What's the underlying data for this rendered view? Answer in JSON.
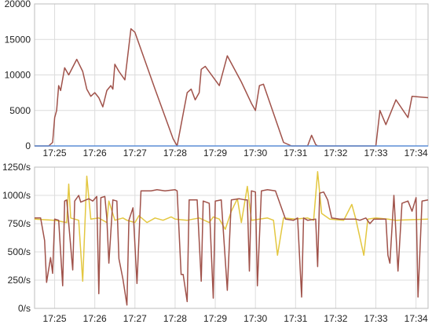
{
  "chart_data": [
    {
      "type": "line",
      "title": "",
      "xlabel": "",
      "ylabel": "",
      "x_ticks": [
        "17:25",
        "17:26",
        "17:27",
        "17:28",
        "17:29",
        "17:30",
        "17:31",
        "17:32",
        "17:33",
        "17:34"
      ],
      "y_ticks": [
        "0",
        "5000",
        "10000",
        "15000",
        "20000"
      ],
      "ylim": [
        0,
        20000
      ],
      "xlim_minutes": [
        24.5,
        34.3
      ],
      "grid": true,
      "series": [
        {
          "color": "#a0524a",
          "points": [
            [
              24.5,
              0
            ],
            [
              24.85,
              0
            ],
            [
              24.95,
              500
            ],
            [
              25.0,
              4000
            ],
            [
              25.05,
              5000
            ],
            [
              25.1,
              8500
            ],
            [
              25.15,
              7800
            ],
            [
              25.25,
              11000
            ],
            [
              25.35,
              10000
            ],
            [
              25.55,
              12200
            ],
            [
              25.7,
              10500
            ],
            [
              25.8,
              8000
            ],
            [
              25.9,
              7000
            ],
            [
              26.0,
              7500
            ],
            [
              26.1,
              6800
            ],
            [
              26.2,
              5500
            ],
            [
              26.3,
              7800
            ],
            [
              26.4,
              8500
            ],
            [
              26.45,
              8000
            ],
            [
              26.5,
              11500
            ],
            [
              26.6,
              10500
            ],
            [
              26.75,
              9300
            ],
            [
              26.9,
              16500
            ],
            [
              27.0,
              16000
            ],
            [
              27.5,
              8000
            ],
            [
              27.95,
              1000
            ],
            [
              28.05,
              0
            ],
            [
              28.15,
              3000
            ],
            [
              28.3,
              7500
            ],
            [
              28.4,
              8000
            ],
            [
              28.5,
              6500
            ],
            [
              28.6,
              7500
            ],
            [
              28.65,
              10800
            ],
            [
              28.75,
              11200
            ],
            [
              29.1,
              8500
            ],
            [
              29.3,
              12700
            ],
            [
              29.65,
              9000
            ],
            [
              29.9,
              6000
            ],
            [
              30.0,
              5000
            ],
            [
              30.1,
              8500
            ],
            [
              30.2,
              8700
            ],
            [
              30.7,
              500
            ],
            [
              30.9,
              0
            ],
            [
              31.3,
              0
            ],
            [
              31.4,
              1500
            ],
            [
              31.5,
              200
            ],
            [
              31.55,
              0
            ],
            [
              33.0,
              0
            ],
            [
              33.1,
              5000
            ],
            [
              33.25,
              3000
            ],
            [
              33.5,
              6500
            ],
            [
              33.8,
              4000
            ],
            [
              33.9,
              7000
            ],
            [
              34.3,
              6800
            ]
          ]
        },
        {
          "color": "#5b8ed6",
          "points": [
            [
              24.5,
              0
            ],
            [
              34.3,
              0
            ]
          ]
        }
      ]
    },
    {
      "type": "line",
      "title": "",
      "xlabel": "",
      "ylabel": "",
      "x_ticks": [
        "17:25",
        "17:26",
        "17:27",
        "17:28",
        "17:29",
        "17:30",
        "17:31",
        "17:32",
        "17:33",
        "17:34"
      ],
      "y_ticks": [
        "0/s",
        "250/s",
        "500/s",
        "750/s",
        "1000/s",
        "1250/s"
      ],
      "ylim": [
        0,
        1250
      ],
      "xlim_minutes": [
        24.5,
        34.3
      ],
      "grid": true,
      "series": [
        {
          "color": "#e3c740",
          "points": [
            [
              24.5,
              790
            ],
            [
              25.0,
              780
            ],
            [
              25.3,
              760
            ],
            [
              25.35,
              1100
            ],
            [
              25.4,
              800
            ],
            [
              25.6,
              780
            ],
            [
              25.7,
              240
            ],
            [
              25.8,
              1170
            ],
            [
              25.9,
              790
            ],
            [
              26.1,
              800
            ],
            [
              26.3,
              760
            ],
            [
              26.35,
              950
            ],
            [
              26.5,
              780
            ],
            [
              26.7,
              800
            ],
            [
              26.8,
              780
            ],
            [
              27.0,
              760
            ],
            [
              27.1,
              820
            ],
            [
              27.3,
              760
            ],
            [
              27.5,
              800
            ],
            [
              27.7,
              780
            ],
            [
              27.9,
              810
            ],
            [
              28.0,
              790
            ],
            [
              28.3,
              780
            ],
            [
              28.6,
              800
            ],
            [
              28.85,
              760
            ],
            [
              28.95,
              810
            ],
            [
              29.1,
              790
            ],
            [
              29.25,
              700
            ],
            [
              29.4,
              860
            ],
            [
              29.55,
              970
            ],
            [
              29.65,
              760
            ],
            [
              29.8,
              1080
            ],
            [
              29.9,
              780
            ],
            [
              30.1,
              790
            ],
            [
              30.3,
              800
            ],
            [
              30.45,
              780
            ],
            [
              30.55,
              470
            ],
            [
              30.7,
              800
            ],
            [
              31.0,
              790
            ],
            [
              31.3,
              800
            ],
            [
              31.45,
              780
            ],
            [
              31.55,
              1210
            ],
            [
              31.65,
              840
            ],
            [
              31.85,
              790
            ],
            [
              32.2,
              780
            ],
            [
              32.4,
              920
            ],
            [
              32.5,
              790
            ],
            [
              32.7,
              470
            ],
            [
              32.8,
              790
            ],
            [
              33.0,
              800
            ],
            [
              33.3,
              790
            ],
            [
              33.5,
              780
            ],
            [
              34.3,
              790
            ]
          ]
        },
        {
          "color": "#a0524a",
          "points": [
            [
              24.5,
              800
            ],
            [
              24.65,
              800
            ],
            [
              24.75,
              600
            ],
            [
              24.8,
              230
            ],
            [
              24.9,
              450
            ],
            [
              24.95,
              310
            ],
            [
              25.0,
              790
            ],
            [
              25.1,
              780
            ],
            [
              25.2,
              200
            ],
            [
              25.25,
              950
            ],
            [
              25.3,
              960
            ],
            [
              25.45,
              340
            ],
            [
              25.5,
              950
            ],
            [
              25.6,
              1000
            ],
            [
              25.65,
              940
            ],
            [
              25.85,
              970
            ],
            [
              25.95,
              950
            ],
            [
              26.05,
              990
            ],
            [
              26.1,
              130
            ],
            [
              26.15,
              980
            ],
            [
              26.25,
              990
            ],
            [
              26.3,
              800
            ],
            [
              26.35,
              400
            ],
            [
              26.45,
              960
            ],
            [
              26.55,
              950
            ],
            [
              26.6,
              440
            ],
            [
              26.7,
              260
            ],
            [
              26.8,
              30
            ],
            [
              26.85,
              780
            ],
            [
              26.95,
              890
            ],
            [
              27.05,
              220
            ],
            [
              27.15,
              1040
            ],
            [
              27.4,
              1040
            ],
            [
              27.55,
              1050
            ],
            [
              27.75,
              1040
            ],
            [
              28.0,
              1050
            ],
            [
              28.05,
              1040
            ],
            [
              28.15,
              300
            ],
            [
              28.2,
              300
            ],
            [
              28.3,
              60
            ],
            [
              28.35,
              960
            ],
            [
              28.55,
              960
            ],
            [
              28.65,
              240
            ],
            [
              28.7,
              950
            ],
            [
              28.85,
              930
            ],
            [
              28.95,
              90
            ],
            [
              29.0,
              950
            ],
            [
              29.15,
              960
            ],
            [
              29.3,
              160
            ],
            [
              29.4,
              960
            ],
            [
              29.6,
              970
            ],
            [
              29.75,
              960
            ],
            [
              29.8,
              960
            ],
            [
              29.85,
              330
            ],
            [
              29.9,
              1040
            ],
            [
              30.0,
              1030
            ],
            [
              30.05,
              200
            ],
            [
              30.15,
              1040
            ],
            [
              30.3,
              1050
            ],
            [
              30.5,
              1040
            ],
            [
              30.6,
              940
            ],
            [
              30.75,
              790
            ],
            [
              30.95,
              780
            ],
            [
              31.05,
              800
            ],
            [
              31.15,
              100
            ],
            [
              31.2,
              800
            ],
            [
              31.3,
              780
            ],
            [
              31.5,
              790
            ],
            [
              31.55,
              370
            ],
            [
              31.6,
              1020
            ],
            [
              31.7,
              1030
            ],
            [
              31.8,
              960
            ],
            [
              31.9,
              800
            ],
            [
              32.1,
              790
            ],
            [
              32.3,
              790
            ],
            [
              32.5,
              790
            ],
            [
              32.6,
              780
            ],
            [
              32.75,
              800
            ],
            [
              32.85,
              750
            ],
            [
              32.95,
              790
            ],
            [
              33.1,
              790
            ],
            [
              33.25,
              790
            ],
            [
              33.3,
              470
            ],
            [
              33.35,
              400
            ],
            [
              33.45,
              1000
            ],
            [
              33.55,
              330
            ],
            [
              33.65,
              930
            ],
            [
              33.8,
              950
            ],
            [
              33.9,
              860
            ],
            [
              34.0,
              980
            ],
            [
              34.05,
              100
            ],
            [
              34.15,
              950
            ],
            [
              34.3,
              960
            ]
          ]
        }
      ]
    }
  ]
}
